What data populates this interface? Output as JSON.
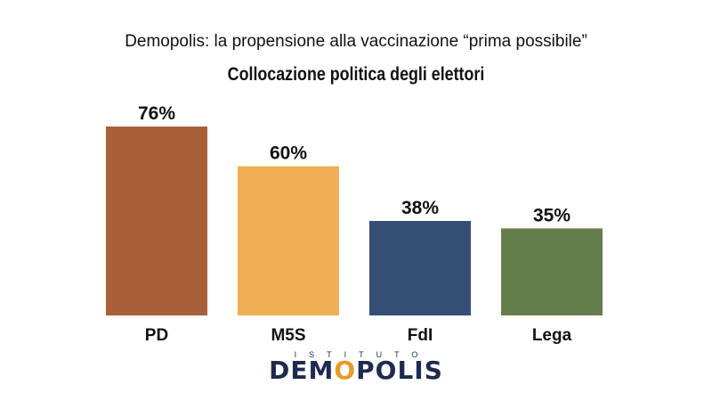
{
  "chart_data": {
    "type": "bar",
    "title": "Demopolis: la propensione alla vaccinazione “prima possibile”",
    "subtitle": "Collocazione politica degli elettori",
    "categories": [
      "PD",
      "M5S",
      "FdI",
      "Lega"
    ],
    "values": [
      76,
      60,
      38,
      35
    ],
    "labels": [
      "76%",
      "60%",
      "38%",
      "35%"
    ],
    "colors": [
      "#A95F3A",
      "#F0AF55",
      "#344F73",
      "#647E4C"
    ],
    "xlabel": "",
    "ylabel": "",
    "ylim": [
      0,
      100
    ],
    "grid": false
  },
  "logo": {
    "top": "ISTITUTO",
    "main": "DEMOPOLIS"
  }
}
